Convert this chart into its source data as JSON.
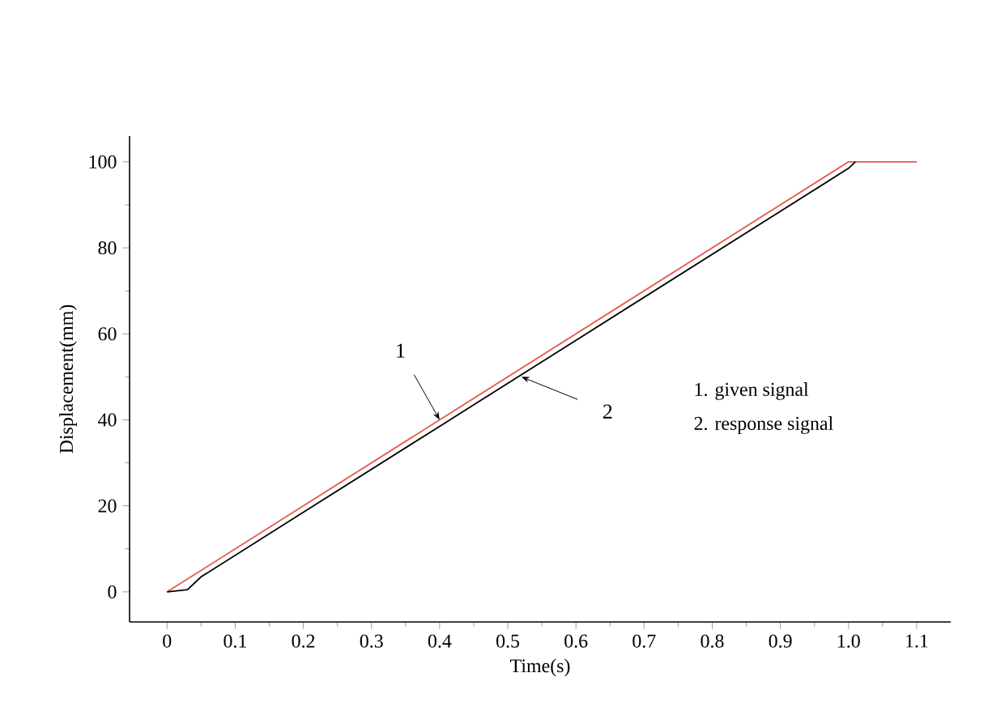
{
  "chart_data": {
    "type": "line",
    "xlabel": "Time(s)",
    "ylabel": "Displacement(mm)",
    "xlim": [
      -0.055,
      1.15
    ],
    "ylim": [
      -7,
      106
    ],
    "xticks": [
      0,
      0.1,
      0.2,
      0.3,
      0.4,
      0.5,
      0.6,
      0.7,
      0.8,
      0.9,
      {
        "value": 1.0,
        "label": "1.0"
      },
      1.1
    ],
    "yticks": [
      0,
      20,
      40,
      60,
      80,
      100
    ],
    "grid": false,
    "marker": "none",
    "line_style": "solid",
    "series": [
      {
        "color": "#e8584a",
        "x": [
          0,
          1.0,
          1.1
        ],
        "values": [
          0,
          100,
          100
        ]
      },
      {
        "color": "#000000",
        "x": [
          0,
          0.03,
          0.05,
          0.2,
          0.4,
          0.6,
          0.8,
          1.0,
          1.01
        ],
        "values": [
          0,
          0.5,
          3.5,
          18.5,
          38.5,
          58.5,
          78.5,
          98.5,
          100
        ]
      }
    ],
    "annotations": [
      {
        "text": "1",
        "x": 0.4,
        "y": 40
      },
      {
        "text": "2",
        "x": 0.52,
        "y": 50
      },
      "1. given signal",
      "2. response signal"
    ]
  }
}
